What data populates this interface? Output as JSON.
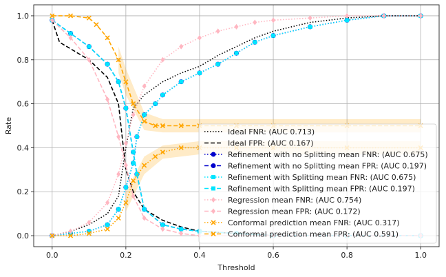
{
  "chart_data": {
    "type": "line",
    "title": "",
    "xlabel": "Threshold",
    "ylabel": "Rate",
    "xlim": [
      -0.05,
      1.05
    ],
    "ylim": [
      -0.05,
      1.05
    ],
    "grid": true,
    "legend_position": "center-right",
    "x_ticks": [
      0.0,
      0.2,
      0.4,
      0.6,
      0.8,
      1.0
    ],
    "y_ticks": [
      0.0,
      0.2,
      0.4,
      0.6,
      0.8,
      1.0
    ],
    "x_tick_labels": [
      "0.0",
      "0.2",
      "0.4",
      "0.6",
      "0.8",
      "1.0"
    ],
    "y_tick_labels": [
      "0.0",
      "0.2",
      "0.4",
      "0.6",
      "0.8",
      "1.0"
    ],
    "series": [
      {
        "name": "Ideal FNR: (AUC 0.713)",
        "color": "#000000",
        "linestyle": "dotted",
        "marker": "none",
        "x": [
          0.0,
          0.05,
          0.1,
          0.15,
          0.18,
          0.2,
          0.22,
          0.25,
          0.3,
          0.35,
          0.4,
          0.45,
          0.5,
          0.55,
          0.6,
          0.7,
          0.8,
          0.9,
          1.0
        ],
        "y": [
          0.0,
          0.02,
          0.05,
          0.1,
          0.18,
          0.4,
          0.58,
          0.64,
          0.7,
          0.74,
          0.77,
          0.82,
          0.86,
          0.9,
          0.93,
          0.97,
          0.99,
          1.0,
          1.0
        ]
      },
      {
        "name": "Ideal FPR: (AUC 0.167)",
        "color": "#000000",
        "linestyle": "dashed",
        "marker": "none",
        "x": [
          0.0,
          0.02,
          0.05,
          0.1,
          0.15,
          0.18,
          0.2,
          0.22,
          0.25,
          0.3,
          0.35,
          0.4,
          0.5,
          0.6,
          0.8,
          1.0
        ],
        "y": [
          0.98,
          0.88,
          0.85,
          0.8,
          0.72,
          0.6,
          0.3,
          0.2,
          0.12,
          0.07,
          0.04,
          0.02,
          0.01,
          0.0,
          0.0,
          0.0
        ]
      },
      {
        "name": "Refinement with no Splitting mean FNR: (AUC 0.675)",
        "color": "#0000cc",
        "linestyle": "dotted",
        "marker": "circle",
        "x": [
          0.0,
          0.05,
          0.1,
          0.15,
          0.18,
          0.2,
          0.22,
          0.23,
          0.25,
          0.28,
          0.3,
          0.35,
          0.4,
          0.45,
          0.5,
          0.55,
          0.6,
          0.7,
          0.8,
          0.9,
          1.0
        ],
        "y": [
          0.0,
          0.01,
          0.02,
          0.05,
          0.12,
          0.22,
          0.33,
          0.45,
          0.55,
          0.6,
          0.64,
          0.7,
          0.74,
          0.78,
          0.83,
          0.88,
          0.91,
          0.95,
          0.98,
          1.0,
          1.0
        ]
      },
      {
        "name": "Refinement with no Splitting mean FPR: (AUC 0.197)",
        "color": "#0000cc",
        "linestyle": "dashed",
        "marker": "circle",
        "x": [
          0.0,
          0.05,
          0.1,
          0.15,
          0.18,
          0.2,
          0.22,
          0.23,
          0.25,
          0.3,
          0.35,
          0.4,
          0.5,
          0.6,
          0.8,
          1.0
        ],
        "y": [
          0.98,
          0.92,
          0.86,
          0.78,
          0.7,
          0.58,
          0.38,
          0.28,
          0.12,
          0.05,
          0.03,
          0.02,
          0.01,
          0.0,
          0.0,
          0.0
        ]
      },
      {
        "name": "Refinement with Splitting mean FNR: (AUC 0.675)",
        "color": "#00e5ff",
        "linestyle": "dotted",
        "marker": "square",
        "x": [
          0.0,
          0.05,
          0.1,
          0.15,
          0.18,
          0.2,
          0.22,
          0.23,
          0.25,
          0.28,
          0.3,
          0.35,
          0.4,
          0.45,
          0.5,
          0.55,
          0.6,
          0.7,
          0.8,
          0.9,
          1.0
        ],
        "y": [
          0.0,
          0.01,
          0.02,
          0.05,
          0.12,
          0.22,
          0.33,
          0.45,
          0.55,
          0.6,
          0.64,
          0.7,
          0.74,
          0.78,
          0.83,
          0.88,
          0.91,
          0.95,
          0.98,
          1.0,
          1.0
        ]
      },
      {
        "name": "Refinement with Splitting mean FPR: (AUC 0.197)",
        "color": "#00e5ff",
        "linestyle": "dashed",
        "marker": "square",
        "x": [
          0.0,
          0.05,
          0.1,
          0.15,
          0.18,
          0.2,
          0.22,
          0.23,
          0.25,
          0.3,
          0.35,
          0.4,
          0.5,
          0.6,
          0.8,
          1.0
        ],
        "y": [
          0.98,
          0.92,
          0.86,
          0.78,
          0.7,
          0.58,
          0.38,
          0.28,
          0.12,
          0.05,
          0.03,
          0.02,
          0.01,
          0.0,
          0.0,
          0.0
        ]
      },
      {
        "name": "Regression mean FNR: (AUC 0.754)",
        "color": "#ffb6c1",
        "linestyle": "dotted",
        "marker": "diamond",
        "x": [
          0.0,
          0.05,
          0.1,
          0.15,
          0.18,
          0.2,
          0.22,
          0.25,
          0.3,
          0.35,
          0.4,
          0.45,
          0.5,
          0.55,
          0.6,
          0.7,
          0.8,
          0.9,
          1.0
        ],
        "y": [
          0.0,
          0.02,
          0.06,
          0.15,
          0.28,
          0.42,
          0.55,
          0.68,
          0.8,
          0.86,
          0.9,
          0.93,
          0.95,
          0.97,
          0.98,
          0.99,
          1.0,
          1.0,
          1.0
        ]
      },
      {
        "name": "Regression mean FPR: (AUC 0.172)",
        "color": "#ffb6c1",
        "linestyle": "dashed",
        "marker": "diamond",
        "x": [
          0.0,
          0.05,
          0.1,
          0.15,
          0.18,
          0.2,
          0.22,
          0.25,
          0.3,
          0.35,
          0.4,
          0.5,
          0.6,
          0.8,
          1.0
        ],
        "y": [
          0.98,
          0.9,
          0.8,
          0.62,
          0.45,
          0.32,
          0.18,
          0.08,
          0.03,
          0.01,
          0.0,
          0.0,
          0.0,
          0.0,
          0.0
        ]
      },
      {
        "name": "Conformal prediction mean FNR: (AUC 0.317)",
        "color": "#ffa500",
        "linestyle": "dotted",
        "marker": "x",
        "x": [
          0.0,
          0.05,
          0.1,
          0.15,
          0.18,
          0.2,
          0.22,
          0.25,
          0.28,
          0.3,
          0.35,
          0.4,
          0.5,
          0.6,
          0.8,
          1.0
        ],
        "y": [
          0.0,
          0.0,
          0.01,
          0.03,
          0.08,
          0.15,
          0.25,
          0.32,
          0.36,
          0.38,
          0.4,
          0.4,
          0.4,
          0.4,
          0.4,
          0.4
        ]
      },
      {
        "name": "Conformal prediction mean FPR: (AUC 0.591)",
        "color": "#ffa500",
        "linestyle": "dashed",
        "marker": "x",
        "x": [
          0.0,
          0.05,
          0.1,
          0.12,
          0.15,
          0.18,
          0.2,
          0.22,
          0.25,
          0.28,
          0.3,
          0.35,
          0.4,
          0.5,
          0.6,
          0.8,
          1.0
        ],
        "y": [
          1.0,
          1.0,
          0.99,
          0.96,
          0.9,
          0.8,
          0.7,
          0.6,
          0.52,
          0.5,
          0.5,
          0.5,
          0.5,
          0.5,
          0.5,
          0.5,
          0.5
        ]
      }
    ],
    "bands": [
      {
        "series": "Conformal prediction mean FNR: (AUC 0.317)",
        "color": "#ffa500",
        "x": [
          0.2,
          0.25,
          0.3,
          0.4,
          0.6,
          0.8,
          1.0
        ],
        "lower": [
          0.11,
          0.28,
          0.35,
          0.37,
          0.37,
          0.37,
          0.37
        ],
        "upper": [
          0.2,
          0.36,
          0.41,
          0.43,
          0.43,
          0.43,
          0.43
        ]
      },
      {
        "series": "Conformal prediction mean FPR: (AUC 0.591)",
        "color": "#ffa500",
        "x": [
          0.18,
          0.2,
          0.25,
          0.3,
          0.4,
          0.6,
          0.8,
          1.0
        ],
        "lower": [
          0.74,
          0.64,
          0.48,
          0.47,
          0.47,
          0.47,
          0.47,
          0.47
        ],
        "upper": [
          0.86,
          0.76,
          0.56,
          0.53,
          0.53,
          0.53,
          0.53,
          0.53
        ]
      }
    ]
  }
}
